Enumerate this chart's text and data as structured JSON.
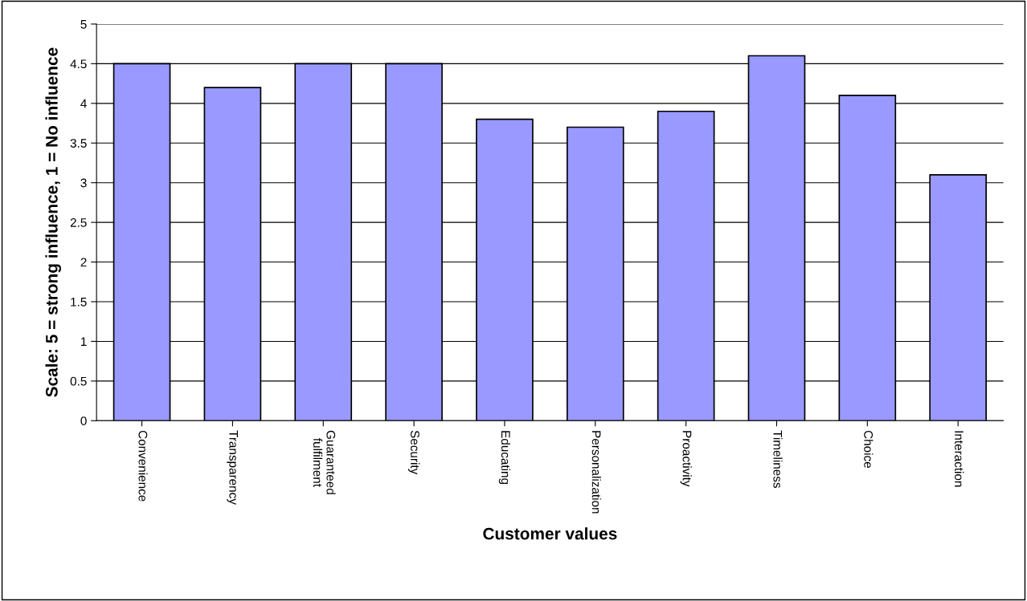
{
  "chart_data": {
    "type": "bar",
    "xlabel": "Customer values",
    "ylabel": "Scale: 5 = strong influence, 1 = No influence",
    "categories": [
      "Convenience",
      "Transparency",
      "Guaranteed fulfilment",
      "Security",
      "Educating",
      "Personalization",
      "Proactivity",
      "Timeliness",
      "Choice",
      "Interaction"
    ],
    "values": [
      4.5,
      4.2,
      4.5,
      4.5,
      3.8,
      3.7,
      3.9,
      4.6,
      4.1,
      3.1
    ],
    "color": "#9999ff",
    "ylim": [
      0,
      5
    ],
    "yticks": [
      0,
      0.5,
      1,
      1.5,
      2,
      2.5,
      3,
      3.5,
      4,
      4.5,
      5
    ],
    "grid": "y",
    "legend": false
  }
}
